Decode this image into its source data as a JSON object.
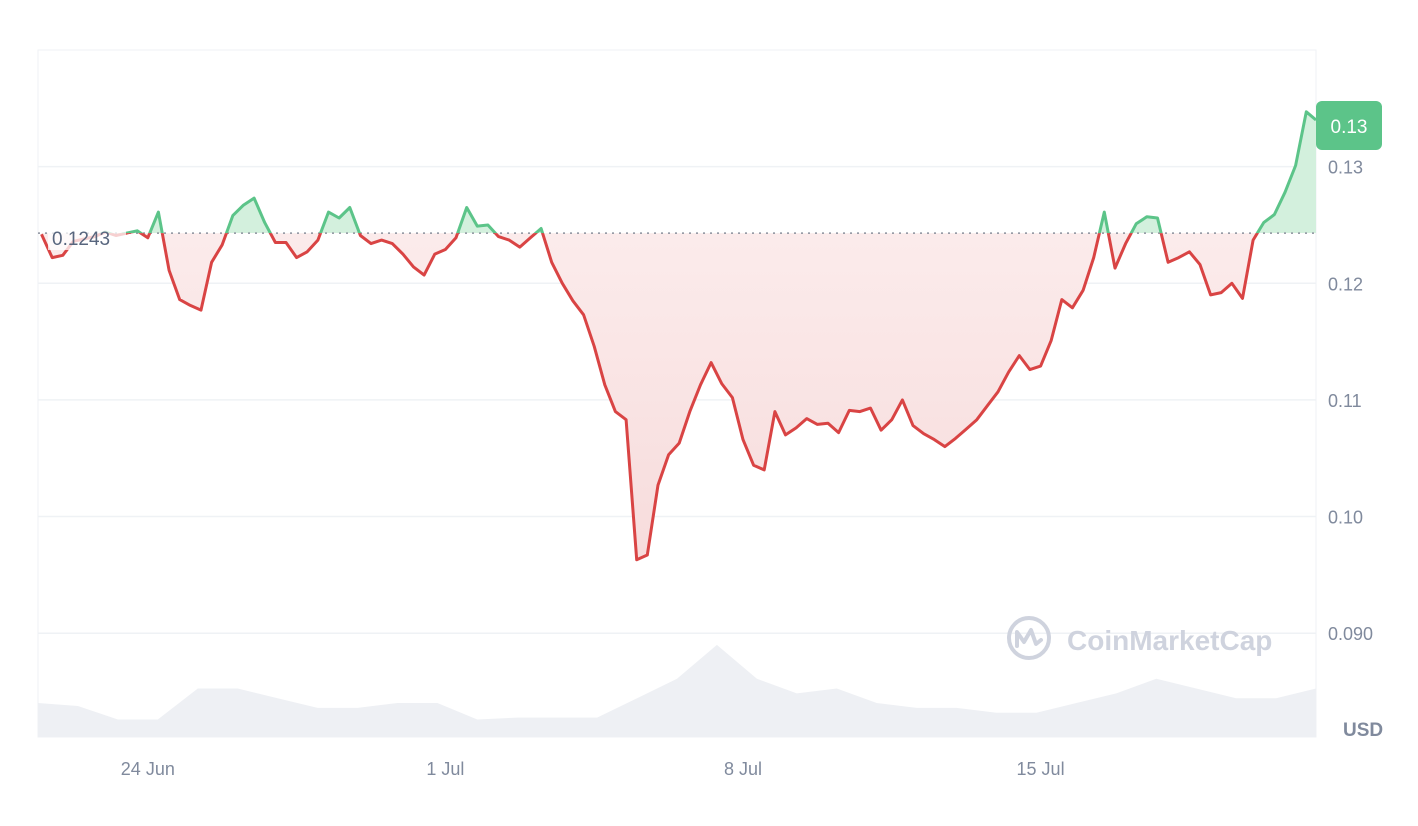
{
  "chart_data": {
    "type": "line",
    "title": "",
    "xlabel": "",
    "ylabel": "",
    "unit_label": "USD",
    "watermark": "CoinMarketCap",
    "baseline": {
      "value": 0.1243,
      "label": "0.1243"
    },
    "current_price_label": "0.13",
    "ylim": [
      0.0811,
      0.14
    ],
    "xlim": [
      "06-21 10:00",
      "07-21 11:30"
    ],
    "y_ticks": [
      {
        "value": 0.13,
        "label": "0.13"
      },
      {
        "value": 0.12,
        "label": "0.12"
      },
      {
        "value": 0.11,
        "label": "0.11"
      },
      {
        "value": 0.1,
        "label": "0.10"
      },
      {
        "value": 0.09,
        "label": "0.090"
      }
    ],
    "x_ticks": [
      {
        "value": "06-24 00:00",
        "label": "24 Jun"
      },
      {
        "value": "07-01 00:00",
        "label": "1 Jul"
      },
      {
        "value": "07-08 00:00",
        "label": "8 Jul"
      },
      {
        "value": "07-15 00:00",
        "label": "15 Jul"
      }
    ],
    "grid": true,
    "colors": {
      "up": "#5cc489",
      "down": "#d94444",
      "up_fill": "#d3f0dd",
      "down_fill": "#fbeaea",
      "grid": "#eff2f5",
      "volume": "#eef0f4",
      "badge": "#5cc489"
    },
    "series": [
      {
        "x": [
          "06-21 12:00",
          "06-21 18:00",
          "06-22 00:00",
          "06-22 06:00",
          "06-22 12:00",
          "06-22 18:00",
          "06-23 00:00",
          "06-23 06:00",
          "06-23 12:00",
          "06-23 18:00",
          "06-24 00:00",
          "06-24 06:00",
          "06-24 12:00",
          "06-24 18:00",
          "06-25 00:00",
          "06-25 06:00",
          "06-25 12:00",
          "06-25 18:00",
          "06-26 00:00",
          "06-26 06:00",
          "06-26 12:00",
          "06-26 18:00",
          "06-27 00:00",
          "06-27 06:00",
          "06-27 12:00",
          "06-27 18:00",
          "06-28 00:00",
          "06-28 06:00",
          "06-28 12:00",
          "06-28 18:00",
          "06-29 00:00",
          "06-29 06:00",
          "06-29 12:00",
          "06-29 18:00",
          "06-30 00:00",
          "06-30 06:00",
          "06-30 12:00",
          "06-30 18:00",
          "07-01 00:00",
          "07-01 06:00",
          "07-01 12:00",
          "07-01 18:00",
          "07-02 00:00",
          "07-02 06:00",
          "07-02 12:00",
          "07-02 18:00",
          "07-03 00:00",
          "07-03 06:00",
          "07-03 12:00",
          "07-03 18:00",
          "07-04 00:00",
          "07-04 06:00",
          "07-04 12:00",
          "07-04 18:00",
          "07-05 00:00",
          "07-05 06:00",
          "07-05 12:00",
          "07-05 18:00",
          "07-06 00:00",
          "07-06 06:00",
          "07-06 12:00",
          "07-06 18:00",
          "07-07 00:00",
          "07-07 06:00",
          "07-07 12:00",
          "07-07 18:00",
          "07-08 00:00",
          "07-08 06:00",
          "07-08 12:00",
          "07-08 18:00",
          "07-09 00:00",
          "07-09 06:00",
          "07-09 12:00",
          "07-09 18:00",
          "07-10 00:00",
          "07-10 06:00",
          "07-10 12:00",
          "07-10 18:00",
          "07-11 00:00",
          "07-11 06:00",
          "07-11 12:00",
          "07-11 18:00",
          "07-12 00:00",
          "07-12 06:00",
          "07-12 12:00",
          "07-12 18:00",
          "07-13 00:00",
          "07-13 06:00",
          "07-13 12:00",
          "07-13 18:00",
          "07-14 00:00",
          "07-14 06:00",
          "07-14 12:00",
          "07-14 18:00",
          "07-15 00:00",
          "07-15 06:00",
          "07-15 12:00",
          "07-15 18:00",
          "07-16 00:00",
          "07-16 06:00",
          "07-16 12:00",
          "07-16 18:00",
          "07-17 00:00",
          "07-17 06:00",
          "07-17 12:00",
          "07-17 18:00",
          "07-18 00:00",
          "07-18 06:00",
          "07-18 12:00",
          "07-18 18:00",
          "07-19 00:00",
          "07-19 06:00",
          "07-19 12:00",
          "07-19 18:00",
          "07-20 00:00",
          "07-20 06:00",
          "07-20 12:00",
          "07-20 18:00",
          "07-21 00:00",
          "07-21 06:00",
          "07-21 11:30"
        ],
        "y": [
          0.1242,
          0.1222,
          0.1224,
          0.1236,
          0.1238,
          0.124,
          0.1244,
          0.1241,
          0.1243,
          0.1245,
          0.1239,
          0.1261,
          0.1211,
          0.1186,
          0.1181,
          0.1177,
          0.1218,
          0.1233,
          0.1258,
          0.1267,
          0.1273,
          0.1252,
          0.1235,
          0.1235,
          0.1222,
          0.1227,
          0.1237,
          0.1261,
          0.1256,
          0.1265,
          0.1241,
          0.1234,
          0.1237,
          0.1234,
          0.1225,
          0.1214,
          0.1207,
          0.1225,
          0.1229,
          0.1239,
          0.1265,
          0.1249,
          0.125,
          0.124,
          0.1237,
          0.1231,
          0.1239,
          0.1247,
          0.1218,
          0.12,
          0.1185,
          0.1173,
          0.1146,
          0.1113,
          0.109,
          0.1083,
          0.0963,
          0.0967,
          0.1027,
          0.1053,
          0.1063,
          0.109,
          0.1113,
          0.1132,
          0.1114,
          0.1102,
          0.1066,
          0.1044,
          0.104,
          0.109,
          0.107,
          0.1076,
          0.1084,
          0.1079,
          0.108,
          0.1072,
          0.1091,
          0.109,
          0.1093,
          0.1074,
          0.1083,
          0.11,
          0.1078,
          0.1071,
          0.1066,
          0.106,
          0.1067,
          0.1075,
          0.1083,
          0.1095,
          0.1107,
          0.1124,
          0.1138,
          0.1126,
          0.1129,
          0.1151,
          0.1186,
          0.1179,
          0.1194,
          0.1222,
          0.1261,
          0.1213,
          0.1234,
          0.1251,
          0.1257,
          0.1256,
          0.1218,
          0.1222,
          0.1227,
          0.1216,
          0.119,
          0.1192,
          0.12,
          0.1187,
          0.1237,
          0.1252,
          0.1259,
          0.1278,
          0.1301,
          0.1347,
          0.134
        ]
      }
    ],
    "volume_relative": [
      0.35,
      0.32,
      0.18,
      0.18,
      0.5,
      0.5,
      0.4,
      0.3,
      0.3,
      0.35,
      0.35,
      0.18,
      0.2,
      0.2,
      0.2,
      0.4,
      0.6,
      0.95,
      0.6,
      0.45,
      0.5,
      0.35,
      0.3,
      0.3,
      0.25,
      0.25,
      0.35,
      0.45,
      0.6,
      0.5,
      0.4,
      0.4,
      0.5
    ]
  }
}
